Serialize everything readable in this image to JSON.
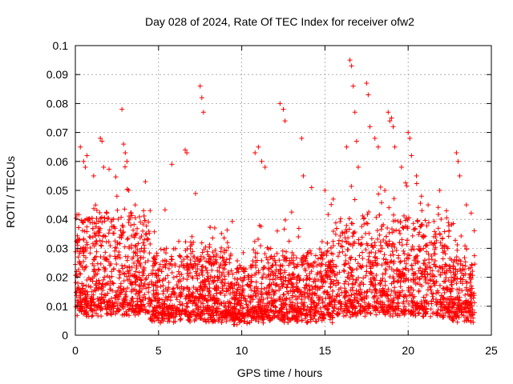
{
  "chart_data": {
    "type": "scatter",
    "title": "Day 028 of 2024, Rate Of TEC Index for receiver ofw2",
    "xlabel": "GPS time / hours",
    "ylabel": "ROTI / TECUs",
    "xlim": [
      0,
      25
    ],
    "ylim": [
      0,
      0.1
    ],
    "x_ticks": [
      "0",
      "5",
      "10",
      "15",
      "20",
      "25"
    ],
    "y_ticks": [
      "0",
      "0.01",
      "0.02",
      "0.03",
      "0.04",
      "0.05",
      "0.06",
      "0.07",
      "0.08",
      "0.09",
      "0.1"
    ],
    "grid": true,
    "marker": "+",
    "color": "#ff0000",
    "series": [
      {
        "x": [
          0.3,
          0.5,
          0.6,
          0.7,
          1.1,
          1.5,
          1.6,
          1.7,
          2.5,
          2.8,
          2.9,
          3.0,
          3.1,
          3.2,
          3.6,
          4.1,
          5.8,
          6.6,
          6.7,
          7.5,
          7.6,
          7.7,
          10.8,
          11.0,
          11.2,
          11.4,
          12.3,
          12.5,
          12.6,
          13.6,
          13.7,
          14.2,
          15.0,
          15.5,
          16.3,
          16.5,
          16.6,
          16.7,
          16.8,
          16.9,
          17.0,
          17.5,
          17.6,
          17.7,
          18.0,
          18.2,
          18.6,
          18.8,
          18.9,
          19.0,
          19.1,
          19.2,
          19.6,
          20.0,
          20.1,
          20.2,
          20.5,
          20.8,
          21.2,
          21.9,
          22.3,
          22.9,
          23.0,
          23.1,
          23.5
        ],
        "y": [
          0.065,
          0.06,
          0.058,
          0.062,
          0.055,
          0.068,
          0.067,
          0.058,
          0.048,
          0.078,
          0.066,
          0.063,
          0.06,
          0.05,
          0.045,
          0.043,
          0.059,
          0.064,
          0.063,
          0.086,
          0.082,
          0.077,
          0.063,
          0.065,
          0.06,
          0.058,
          0.08,
          0.078,
          0.074,
          0.068,
          0.055,
          0.051,
          0.05,
          0.047,
          0.065,
          0.095,
          0.093,
          0.086,
          0.077,
          0.067,
          0.058,
          0.087,
          0.083,
          0.072,
          0.068,
          0.065,
          0.05,
          0.077,
          0.074,
          0.075,
          0.072,
          0.065,
          0.058,
          0.07,
          0.068,
          0.062,
          0.055,
          0.048,
          0.045,
          0.05,
          0.043,
          0.063,
          0.06,
          0.055,
          0.045
        ]
      }
    ]
  }
}
